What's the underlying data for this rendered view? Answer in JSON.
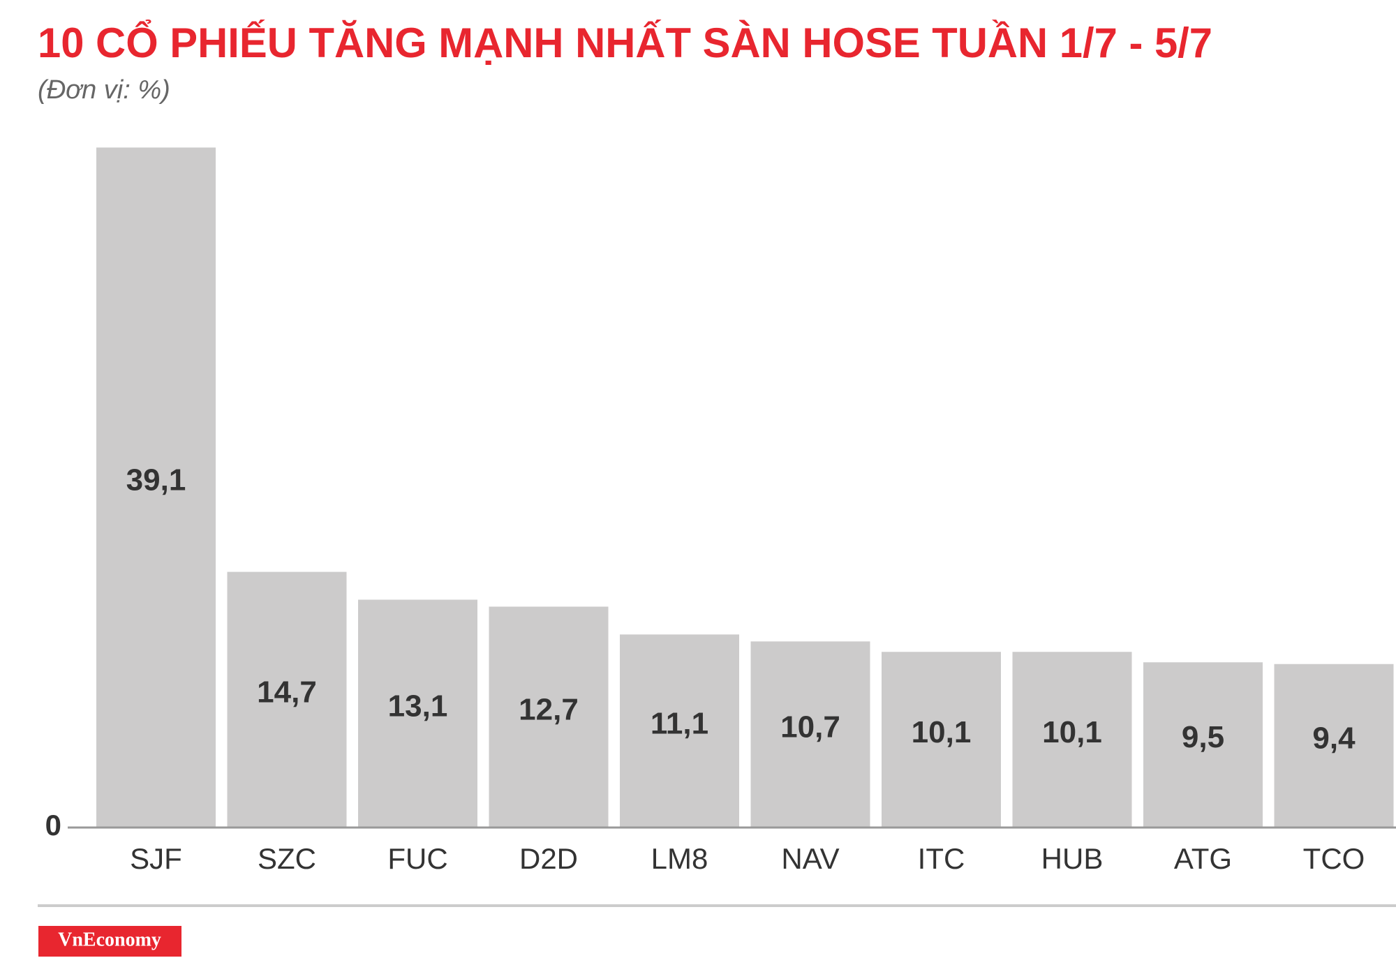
{
  "chart_data": {
    "type": "bar",
    "title": "10 CỔ PHIẾU TĂNG MẠNH NHẤT SÀN HOSE TUẦN 1/7 - 5/7",
    "subtitle": "(Đơn vị: %)",
    "categories": [
      "SJF",
      "SZC",
      "FUC",
      "D2D",
      "LM8",
      "NAV",
      "ITC",
      "HUB",
      "ATG",
      "TCO"
    ],
    "values": [
      39.1,
      14.7,
      13.1,
      12.7,
      11.1,
      10.7,
      10.1,
      10.1,
      9.5,
      9.4
    ],
    "value_labels": [
      "39,1",
      "14,7",
      "13,1",
      "12,7",
      "11,1",
      "10,7",
      "10,1",
      "10,1",
      "9,5",
      "9,4"
    ],
    "color": "#cccbcb",
    "ylim": [
      0,
      40
    ],
    "yticks": [
      0
    ],
    "grid": false,
    "source": "VnEconomy"
  }
}
